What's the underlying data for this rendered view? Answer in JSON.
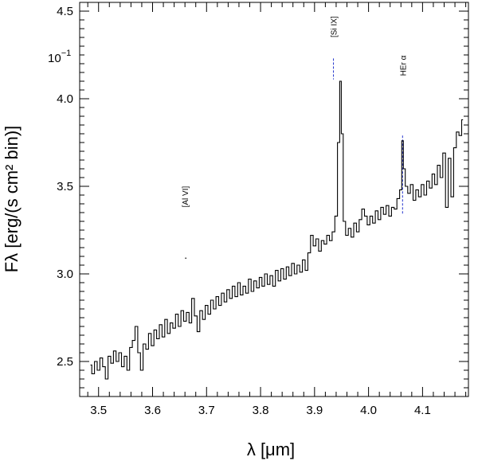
{
  "chart_data": {
    "type": "line",
    "xlabel": "λ [μm]",
    "ylabel": "Fλ [erg/(s cm² bin)]",
    "y_multiplier_label": "10",
    "y_multiplier_exponent": "−1",
    "xlim": [
      3.465,
      4.185
    ],
    "ylim": [
      2.3,
      4.55
    ],
    "xticks": [
      3.5,
      3.6,
      3.7,
      3.8,
      3.9,
      4.0,
      4.1
    ],
    "xtick_labels": [
      "3.5",
      "3.6",
      "3.7",
      "3.8",
      "3.9",
      "4.0",
      "4.1"
    ],
    "yticks": [
      2.5,
      3.0,
      3.5,
      4.0,
      4.5
    ],
    "ytick_labels": [
      "2.5",
      "3.0",
      "3.5",
      "4.0",
      "4.5"
    ],
    "grid": false,
    "legend": "none",
    "line_color": "#000000",
    "marker_color": "#2233cc",
    "spectrum": [
      [
        3.485,
        2.48
      ],
      [
        3.49,
        2.43
      ],
      [
        3.495,
        2.5
      ],
      [
        3.5,
        2.45
      ],
      [
        3.505,
        2.52
      ],
      [
        3.51,
        2.47
      ],
      [
        3.515,
        2.4
      ],
      [
        3.52,
        2.53
      ],
      [
        3.525,
        2.49
      ],
      [
        3.53,
        2.56
      ],
      [
        3.535,
        2.5
      ],
      [
        3.54,
        2.55
      ],
      [
        3.545,
        2.47
      ],
      [
        3.55,
        2.53
      ],
      [
        3.555,
        2.45
      ],
      [
        3.56,
        2.58
      ],
      [
        3.565,
        2.62
      ],
      [
        3.57,
        2.7
      ],
      [
        3.575,
        2.55
      ],
      [
        3.58,
        2.45
      ],
      [
        3.585,
        2.6
      ],
      [
        3.59,
        2.57
      ],
      [
        3.595,
        2.66
      ],
      [
        3.6,
        2.59
      ],
      [
        3.605,
        2.68
      ],
      [
        3.61,
        2.63
      ],
      [
        3.615,
        2.71
      ],
      [
        3.62,
        2.64
      ],
      [
        3.625,
        2.74
      ],
      [
        3.63,
        2.66
      ],
      [
        3.635,
        2.72
      ],
      [
        3.64,
        2.69
      ],
      [
        3.645,
        2.77
      ],
      [
        3.65,
        2.7
      ],
      [
        3.655,
        2.79
      ],
      [
        3.66,
        2.73
      ],
      [
        3.665,
        2.78
      ],
      [
        3.67,
        2.72
      ],
      [
        3.675,
        2.86
      ],
      [
        3.68,
        2.76
      ],
      [
        3.685,
        2.67
      ],
      [
        3.69,
        2.79
      ],
      [
        3.695,
        2.74
      ],
      [
        3.7,
        2.82
      ],
      [
        3.705,
        2.77
      ],
      [
        3.71,
        2.85
      ],
      [
        3.715,
        2.8
      ],
      [
        3.72,
        2.87
      ],
      [
        3.725,
        2.82
      ],
      [
        3.73,
        2.89
      ],
      [
        3.735,
        2.84
      ],
      [
        3.74,
        2.91
      ],
      [
        3.745,
        2.86
      ],
      [
        3.75,
        2.93
      ],
      [
        3.755,
        2.87
      ],
      [
        3.76,
        2.95
      ],
      [
        3.765,
        2.88
      ],
      [
        3.77,
        2.93
      ],
      [
        3.775,
        2.89
      ],
      [
        3.78,
        2.97
      ],
      [
        3.785,
        2.9
      ],
      [
        3.79,
        2.96
      ],
      [
        3.795,
        2.92
      ],
      [
        3.8,
        2.98
      ],
      [
        3.805,
        2.93
      ],
      [
        3.81,
        3.0
      ],
      [
        3.815,
        2.94
      ],
      [
        3.82,
        2.99
      ],
      [
        3.825,
        2.93
      ],
      [
        3.83,
        3.02
      ],
      [
        3.835,
        2.96
      ],
      [
        3.84,
        3.03
      ],
      [
        3.845,
        2.97
      ],
      [
        3.85,
        3.04
      ],
      [
        3.855,
        2.99
      ],
      [
        3.86,
        3.06
      ],
      [
        3.865,
        3.0
      ],
      [
        3.87,
        3.05
      ],
      [
        3.875,
        3.01
      ],
      [
        3.88,
        3.08
      ],
      [
        3.885,
        3.02
      ],
      [
        3.89,
        3.12
      ],
      [
        3.895,
        3.22
      ],
      [
        3.9,
        3.16
      ],
      [
        3.905,
        3.2
      ],
      [
        3.91,
        3.13
      ],
      [
        3.915,
        3.19
      ],
      [
        3.92,
        3.17
      ],
      [
        3.925,
        3.22
      ],
      [
        3.93,
        3.19
      ],
      [
        3.935,
        3.24
      ],
      [
        3.94,
        3.33
      ],
      [
        3.945,
        3.75
      ],
      [
        3.948,
        4.1
      ],
      [
        3.951,
        3.8
      ],
      [
        3.955,
        3.3
      ],
      [
        3.96,
        3.22
      ],
      [
        3.965,
        3.26
      ],
      [
        3.97,
        3.21
      ],
      [
        3.975,
        3.29
      ],
      [
        3.98,
        3.24
      ],
      [
        3.985,
        3.31
      ],
      [
        3.99,
        3.37
      ],
      [
        3.995,
        3.33
      ],
      [
        4.0,
        3.28
      ],
      [
        4.005,
        3.33
      ],
      [
        4.01,
        3.29
      ],
      [
        4.015,
        3.36
      ],
      [
        4.02,
        3.31
      ],
      [
        4.025,
        3.38
      ],
      [
        4.03,
        3.34
      ],
      [
        4.035,
        3.39
      ],
      [
        4.04,
        3.33
      ],
      [
        4.045,
        3.38
      ],
      [
        4.05,
        3.37
      ],
      [
        4.055,
        3.43
      ],
      [
        4.06,
        3.48
      ],
      [
        4.063,
        3.76
      ],
      [
        4.066,
        3.6
      ],
      [
        4.07,
        3.5
      ],
      [
        4.075,
        3.46
      ],
      [
        4.08,
        3.51
      ],
      [
        4.085,
        3.42
      ],
      [
        4.09,
        3.48
      ],
      [
        4.095,
        3.44
      ],
      [
        4.1,
        3.51
      ],
      [
        4.105,
        3.45
      ],
      [
        4.11,
        3.53
      ],
      [
        4.115,
        3.49
      ],
      [
        4.12,
        3.57
      ],
      [
        4.125,
        3.51
      ],
      [
        4.13,
        3.62
      ],
      [
        4.135,
        3.55
      ],
      [
        4.14,
        3.69
      ],
      [
        4.145,
        3.38
      ],
      [
        4.15,
        3.66
      ],
      [
        4.155,
        3.44
      ],
      [
        4.16,
        3.72
      ],
      [
        4.165,
        3.81
      ],
      [
        4.17,
        3.79
      ],
      [
        4.175,
        3.88
      ]
    ],
    "line_markers": [
      {
        "label": "[Al VI]",
        "x": 3.66,
        "y_marker": 3.09,
        "y_text": 3.38
      },
      {
        "label": "[Si IX]",
        "x": 3.935,
        "y_marker": 4.23,
        "y_text": 4.35
      },
      {
        "label": "HEr α",
        "x": 4.063,
        "y_marker": 3.79,
        "y_text": 4.13
      }
    ]
  }
}
